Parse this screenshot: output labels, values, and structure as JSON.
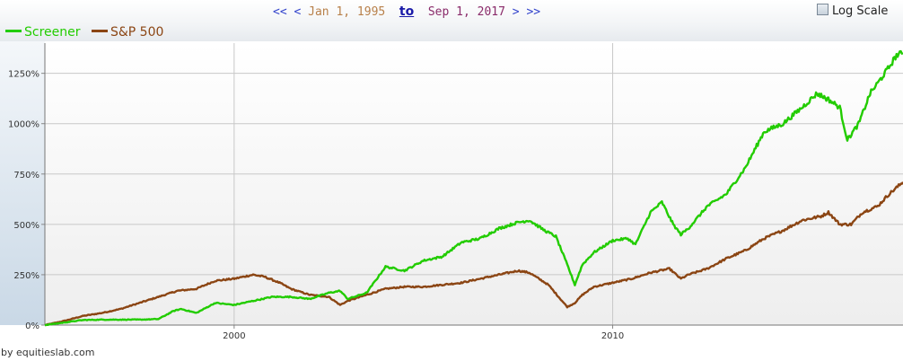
{
  "controls": {
    "prev_far": "<<",
    "prev": "<",
    "start_date": "Jan 1, 1995",
    "to_label": "to",
    "end_date": "Sep 1, 2017",
    "next": ">",
    "next_far": ">>",
    "log_scale_label": "Log Scale",
    "log_scale_checked": false
  },
  "credit": "by equitieslab.com",
  "chart_data": {
    "type": "line",
    "title": "",
    "xlabel": "",
    "ylabel": "",
    "x_ticks": [
      "2000",
      "2010"
    ],
    "y_ticks": [
      "0%",
      "250%",
      "500%",
      "750%",
      "1000%",
      "1250%"
    ],
    "xlim": [
      1995.0,
      2017.67
    ],
    "ylim": [
      0,
      1400
    ],
    "grid": true,
    "legend_position": "top-left",
    "series": [
      {
        "name": "Screener",
        "color": "#22cc00",
        "x": [
          1995.0,
          1996.0,
          1996.5,
          1997.0,
          1997.5,
          1998.0,
          1998.4,
          1998.6,
          1999.0,
          1999.5,
          2000.0,
          2000.5,
          2001.0,
          2001.5,
          2002.0,
          2002.5,
          2002.8,
          2003.0,
          2003.5,
          2004.0,
          2004.5,
          2005.0,
          2005.5,
          2006.0,
          2006.5,
          2007.0,
          2007.5,
          2007.8,
          2008.2,
          2008.5,
          2008.8,
          2009.0,
          2009.2,
          2009.5,
          2010.0,
          2010.4,
          2010.6,
          2011.0,
          2011.3,
          2011.6,
          2011.8,
          2012.0,
          2012.5,
          2013.0,
          2013.5,
          2014.0,
          2014.5,
          2015.0,
          2015.4,
          2015.7,
          2016.0,
          2016.2,
          2016.5,
          2016.8,
          2017.0,
          2017.3,
          2017.5,
          2017.67
        ],
        "values": [
          0,
          25,
          27,
          27,
          27,
          30,
          70,
          80,
          60,
          110,
          100,
          120,
          140,
          140,
          130,
          160,
          170,
          130,
          160,
          290,
          270,
          320,
          340,
          410,
          430,
          480,
          510,
          520,
          470,
          440,
          300,
          200,
          300,
          360,
          420,
          430,
          400,
          560,
          610,
          500,
          450,
          480,
          590,
          650,
          780,
          960,
          1000,
          1080,
          1150,
          1120,
          1080,
          920,
          1000,
          1150,
          1200,
          1280,
          1340,
          1350
        ]
      },
      {
        "name": "S&P 500",
        "color": "#8b4513",
        "x": [
          1995.0,
          1995.5,
          1996.0,
          1996.5,
          1997.0,
          1997.5,
          1998.0,
          1998.5,
          1999.0,
          1999.5,
          2000.0,
          2000.5,
          2000.8,
          2001.2,
          2001.5,
          2002.0,
          2002.5,
          2002.8,
          2003.0,
          2003.5,
          2004.0,
          2004.5,
          2005.0,
          2005.5,
          2006.0,
          2006.5,
          2007.0,
          2007.5,
          2007.8,
          2008.3,
          2008.8,
          2009.0,
          2009.2,
          2009.5,
          2010.0,
          2010.5,
          2011.0,
          2011.5,
          2011.8,
          2012.0,
          2012.5,
          2013.0,
          2013.5,
          2014.0,
          2014.5,
          2015.0,
          2015.5,
          2015.7,
          2016.0,
          2016.3,
          2016.6,
          2017.0,
          2017.3,
          2017.67
        ],
        "values": [
          0,
          20,
          45,
          60,
          80,
          110,
          140,
          170,
          180,
          220,
          230,
          250,
          240,
          210,
          180,
          150,
          140,
          100,
          120,
          150,
          180,
          190,
          190,
          200,
          210,
          230,
          250,
          270,
          260,
          200,
          90,
          110,
          150,
          190,
          210,
          230,
          260,
          280,
          230,
          250,
          280,
          330,
          370,
          430,
          470,
          520,
          540,
          560,
          500,
          500,
          560,
          590,
          650,
          710
        ]
      }
    ]
  }
}
